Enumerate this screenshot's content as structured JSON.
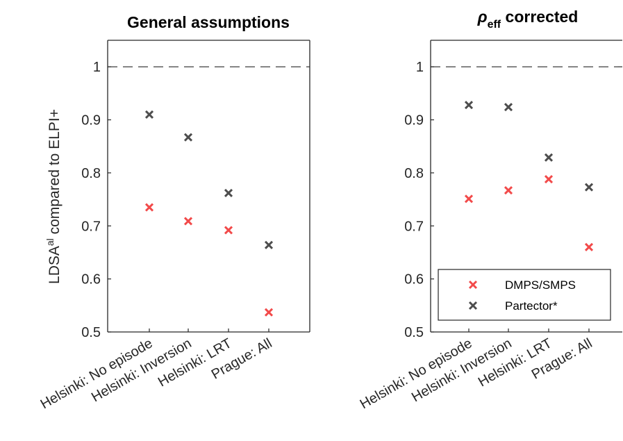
{
  "chart_data": [
    {
      "type": "scatter",
      "title": "General assumptions",
      "ylabel": {
        "base": "LDSA",
        "sup": "al",
        "rest": " compared to ELPI+"
      },
      "categories": [
        "Helsinki: No episode",
        "Helsinki: Inversion",
        "Helsinki: LRT",
        "Prague: All"
      ],
      "ylim": [
        0.5,
        1.05
      ],
      "yticks": [
        "0.5",
        "0.6",
        "0.7",
        "0.8",
        "0.9",
        "1"
      ],
      "reference_line": 1,
      "series": [
        {
          "name": "DMPS/SMPS",
          "color": "#f24a4a",
          "marker": "x",
          "values": [
            0.735,
            0.709,
            0.692,
            0.537
          ]
        },
        {
          "name": "Partector*",
          "color": "#4d4d4d",
          "marker": "x",
          "values": [
            0.91,
            0.867,
            0.762,
            0.664
          ]
        }
      ]
    },
    {
      "type": "scatter",
      "title": {
        "symbol": "ρ",
        "sub": "eff",
        "rest": " corrected"
      },
      "categories": [
        "Helsinki: No episode",
        "Helsinki: Inversion",
        "Helsinki: LRT",
        "Prague: All"
      ],
      "ylim": [
        0.5,
        1.05
      ],
      "yticks": [
        "0.5",
        "0.6",
        "0.7",
        "0.8",
        "0.9",
        "1"
      ],
      "reference_line": 1,
      "legend": "bottom-right",
      "series": [
        {
          "name": "DMPS/SMPS",
          "color": "#f24a4a",
          "marker": "x",
          "values": [
            0.751,
            0.767,
            0.788,
            0.66
          ]
        },
        {
          "name": "Partector*",
          "color": "#4d4d4d",
          "marker": "x",
          "values": [
            0.928,
            0.924,
            0.829,
            0.773
          ]
        }
      ]
    }
  ]
}
